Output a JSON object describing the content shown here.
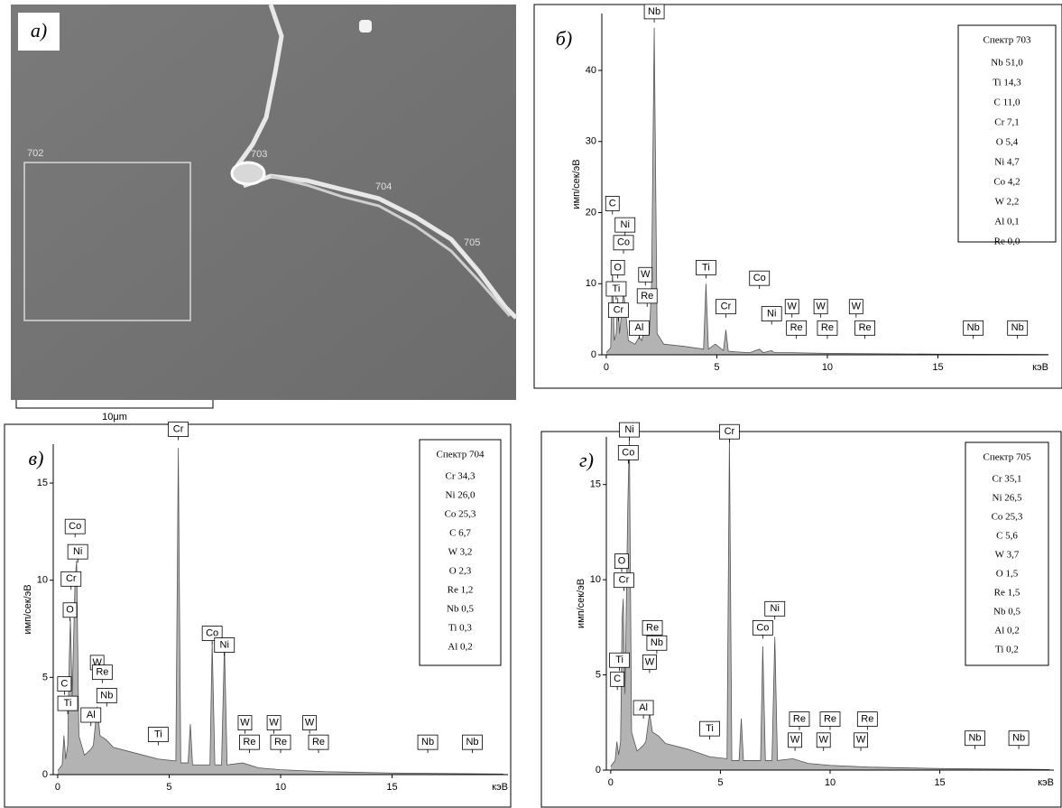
{
  "sem_image": {
    "panel_label": "а)",
    "regions": [
      "702",
      "703",
      "704",
      "705"
    ],
    "scale_bar": "10μm"
  },
  "chart_data": [
    {
      "type": "area",
      "panel_label": "б)",
      "ylabel": "имп/сек/эВ",
      "xlabel": "кэВ",
      "color": "#b3b3b3",
      "legend_title": "Спектр 703",
      "legend_items": [
        "Nb 51,0",
        "Ti 14,3",
        "C 11,0",
        "Cr 7,1",
        "O 5,4",
        "Ni 4,7",
        "Co 4,2",
        "W 2,2",
        "Al 0,1",
        "Re 0,0"
      ],
      "xlim": [
        -0.2,
        20
      ],
      "ylim": [
        0,
        48
      ],
      "xticks": [
        0,
        5,
        10,
        15
      ],
      "yticks": [
        0,
        10,
        20,
        30,
        40
      ],
      "x": [
        0,
        0.2,
        0.28,
        0.36,
        0.45,
        0.52,
        0.6,
        0.7,
        0.78,
        0.85,
        1.0,
        1.3,
        1.49,
        1.6,
        1.77,
        1.95,
        2.05,
        2.17,
        2.3,
        2.6,
        3.5,
        4.4,
        4.51,
        4.62,
        4.93,
        5.3,
        5.41,
        5.52,
        5.95,
        6.5,
        6.93,
        7.1,
        7.48,
        7.6,
        8.4,
        10,
        12,
        15,
        20
      ],
      "values": [
        0.3,
        1,
        12,
        2,
        3,
        8,
        3,
        6,
        9,
        7,
        2,
        1.5,
        2.5,
        2,
        4,
        3,
        10,
        46,
        3,
        1.5,
        1.2,
        0.8,
        10,
        0.8,
        1.5,
        0.6,
        3.5,
        0.5,
        0.4,
        0.3,
        0.8,
        0.3,
        0.6,
        0.3,
        0.3,
        0.2,
        0.15,
        0.1,
        0.05
      ],
      "peak_labels": [
        {
          "text": "C",
          "x": 0.28,
          "y": 20
        },
        {
          "text": "Ni",
          "x": 0.85,
          "y": 17
        },
        {
          "text": "Co",
          "x": 0.78,
          "y": 14.5
        },
        {
          "text": "O",
          "x": 0.52,
          "y": 11
        },
        {
          "text": "Ti",
          "x": 0.45,
          "y": 8
        },
        {
          "text": "Cr",
          "x": 0.55,
          "y": 5
        },
        {
          "text": "W",
          "x": 1.77,
          "y": 10
        },
        {
          "text": "Re",
          "x": 1.85,
          "y": 7
        },
        {
          "text": "Al",
          "x": 1.49,
          "y": 2.5
        },
        {
          "text": "Nb",
          "x": 2.17,
          "y": 47
        },
        {
          "text": "Ti",
          "x": 4.51,
          "y": 11
        },
        {
          "text": "Cr",
          "x": 5.41,
          "y": 5.5
        },
        {
          "text": "Co",
          "x": 6.93,
          "y": 9.5
        },
        {
          "text": "Ni",
          "x": 7.48,
          "y": 4.5
        },
        {
          "text": "W",
          "x": 8.4,
          "y": 5.5
        },
        {
          "text": "W",
          "x": 9.7,
          "y": 5.5
        },
        {
          "text": "W",
          "x": 11.3,
          "y": 5.5
        },
        {
          "text": "Re",
          "x": 8.6,
          "y": 2.5
        },
        {
          "text": "Re",
          "x": 10.0,
          "y": 2.5
        },
        {
          "text": "Re",
          "x": 11.7,
          "y": 2.5
        },
        {
          "text": "Nb",
          "x": 16.6,
          "y": 2.5
        },
        {
          "text": "Nb",
          "x": 18.6,
          "y": 2.5
        }
      ]
    },
    {
      "type": "area",
      "panel_label": "в)",
      "ylabel": "имп/сек/эВ",
      "xlabel": "кэВ",
      "color": "#b3b3b3",
      "legend_title": "Спектр 704",
      "legend_items": [
        "Cr 34,3",
        "Ni 26,0",
        "Co 25,3",
        "C 6,7",
        "W 3,2",
        "O 2,3",
        "Re 1,2",
        "Nb 0,5",
        "Ti 0,3",
        "Al 0,2"
      ],
      "xlim": [
        -0.2,
        20.2
      ],
      "ylim": [
        0,
        17
      ],
      "xticks": [
        0,
        5,
        10,
        15
      ],
      "yticks": [
        0,
        5,
        10,
        15
      ],
      "x": [
        0,
        0.2,
        0.28,
        0.36,
        0.45,
        0.52,
        0.57,
        0.65,
        0.78,
        0.85,
        0.95,
        1.2,
        1.49,
        1.6,
        1.77,
        1.9,
        2.17,
        2.5,
        3.5,
        4.51,
        5.3,
        5.41,
        5.52,
        5.85,
        5.95,
        6.05,
        6.83,
        6.93,
        7.05,
        7.35,
        7.48,
        7.6,
        8.3,
        9,
        10,
        12,
        15,
        20
      ],
      "values": [
        0.2,
        0.5,
        2,
        0.8,
        1.5,
        6,
        8,
        4,
        10,
        11,
        2,
        1,
        1.3,
        1.5,
        3.5,
        2,
        1.8,
        1.4,
        1.1,
        0.8,
        0.7,
        16.8,
        0.6,
        0.6,
        2.6,
        0.5,
        0.5,
        6.8,
        0.5,
        0.5,
        6.7,
        0.5,
        0.6,
        0.35,
        0.25,
        0.15,
        0.08,
        0.03
      ],
      "peak_labels": [
        {
          "text": "Co",
          "x": 0.78,
          "y": 12.3
        },
        {
          "text": "Ni",
          "x": 0.9,
          "y": 11
        },
        {
          "text": "Cr",
          "x": 0.6,
          "y": 9.6
        },
        {
          "text": "O",
          "x": 0.55,
          "y": 8
        },
        {
          "text": "C",
          "x": 0.3,
          "y": 4.2
        },
        {
          "text": "Ti",
          "x": 0.45,
          "y": 3.2
        },
        {
          "text": "W",
          "x": 1.77,
          "y": 5.3
        },
        {
          "text": "Re",
          "x": 2.0,
          "y": 4.8
        },
        {
          "text": "Nb",
          "x": 2.2,
          "y": 3.6
        },
        {
          "text": "Al",
          "x": 1.49,
          "y": 2.6
        },
        {
          "text": "Cr",
          "x": 5.41,
          "y": 17.3
        },
        {
          "text": "Ti",
          "x": 4.51,
          "y": 1.6
        },
        {
          "text": "Co",
          "x": 6.93,
          "y": 6.8
        },
        {
          "text": "Ni",
          "x": 7.48,
          "y": 6.2
        },
        {
          "text": "W",
          "x": 8.4,
          "y": 2.2
        },
        {
          "text": "Re",
          "x": 8.6,
          "y": 1.2
        },
        {
          "text": "W",
          "x": 9.7,
          "y": 2.2
        },
        {
          "text": "Re",
          "x": 10.0,
          "y": 1.2
        },
        {
          "text": "W",
          "x": 11.3,
          "y": 2.2
        },
        {
          "text": "Re",
          "x": 11.7,
          "y": 1.2
        },
        {
          "text": "Nb",
          "x": 16.6,
          "y": 1.2
        },
        {
          "text": "Nb",
          "x": 18.6,
          "y": 1.2
        }
      ]
    },
    {
      "type": "area",
      "panel_label": "г)",
      "ylabel": "имп/сек/эВ",
      "xlabel": "кэВ",
      "color": "#b3b3b3",
      "legend_title": "Спектр 705",
      "legend_items": [
        "Cr 35,1",
        "Ni 26,5",
        "Co 25,3",
        "C 5,6",
        "W 3,7",
        "O 1,5",
        "Re 1,5",
        "Nb 0,5",
        "Al 0,2",
        "Ti 0,2"
      ],
      "xlim": [
        -0.2,
        20.2
      ],
      "ylim": [
        0,
        17.5
      ],
      "xticks": [
        0,
        5,
        10,
        15
      ],
      "yticks": [
        0,
        5,
        10,
        15
      ],
      "x": [
        0,
        0.2,
        0.28,
        0.36,
        0.45,
        0.52,
        0.57,
        0.65,
        0.78,
        0.85,
        0.95,
        1.2,
        1.49,
        1.6,
        1.77,
        1.9,
        2.17,
        2.5,
        3.5,
        4.51,
        5.3,
        5.41,
        5.52,
        5.85,
        5.95,
        6.05,
        6.83,
        6.93,
        7.05,
        7.35,
        7.48,
        7.6,
        8.3,
        9,
        10,
        12,
        15,
        20
      ],
      "values": [
        0.2,
        0.5,
        1.5,
        0.8,
        1.5,
        8,
        9,
        4,
        14,
        17.5,
        2,
        1,
        1.3,
        1.5,
        3,
        2,
        1.8,
        1.4,
        1.1,
        0.7,
        0.6,
        17.5,
        0.5,
        0.5,
        2.7,
        0.5,
        0.5,
        6.5,
        0.5,
        0.5,
        7,
        0.5,
        0.6,
        0.35,
        0.25,
        0.15,
        0.08,
        0.03
      ],
      "peak_labels": [
        {
          "text": "Ni",
          "x": 0.85,
          "y": 17.4
        },
        {
          "text": "Co",
          "x": 0.8,
          "y": 16.2
        },
        {
          "text": "O",
          "x": 0.5,
          "y": 10.5
        },
        {
          "text": "Cr",
          "x": 0.6,
          "y": 9.5
        },
        {
          "text": "Ti",
          "x": 0.4,
          "y": 5.3
        },
        {
          "text": "C",
          "x": 0.3,
          "y": 4.3
        },
        {
          "text": "Re",
          "x": 1.9,
          "y": 7
        },
        {
          "text": "Nb",
          "x": 2.1,
          "y": 6.2
        },
        {
          "text": "W",
          "x": 1.77,
          "y": 5.2
        },
        {
          "text": "Al",
          "x": 1.49,
          "y": 2.8
        },
        {
          "text": "Cr",
          "x": 5.41,
          "y": 17.3
        },
        {
          "text": "Ti",
          "x": 4.51,
          "y": 1.7
        },
        {
          "text": "Co",
          "x": 6.93,
          "y": 7
        },
        {
          "text": "Ni",
          "x": 7.48,
          "y": 8
        },
        {
          "text": "Re",
          "x": 8.6,
          "y": 2.2
        },
        {
          "text": "W",
          "x": 8.4,
          "y": 1.1
        },
        {
          "text": "Re",
          "x": 10.0,
          "y": 2.2
        },
        {
          "text": "W",
          "x": 9.7,
          "y": 1.1
        },
        {
          "text": "Re",
          "x": 11.7,
          "y": 2.2
        },
        {
          "text": "W",
          "x": 11.4,
          "y": 1.1
        },
        {
          "text": "Nb",
          "x": 16.6,
          "y": 1.2
        },
        {
          "text": "Nb",
          "x": 18.6,
          "y": 1.2
        }
      ]
    }
  ]
}
